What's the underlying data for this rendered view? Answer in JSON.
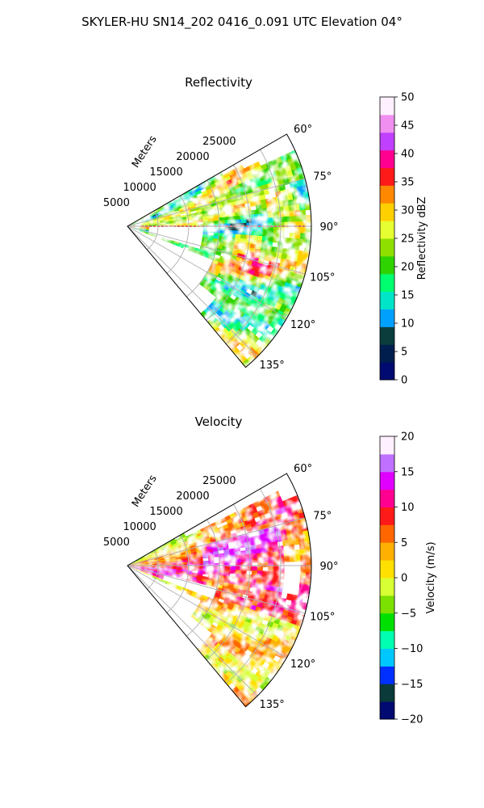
{
  "figure_title": "SKYLER-HU  SN14_202  0416_0.091 UTC Elevation 04°",
  "chart_data": [
    {
      "type": "heatmap",
      "title": "Reflectivity",
      "projection": "polar-sector",
      "radial_label": "Meters",
      "radial_ticks": [
        "5000",
        "10000",
        "15000",
        "20000",
        "25000"
      ],
      "radial_tick_values": [
        5000,
        10000,
        15000,
        20000,
        25000
      ],
      "rlim": [
        0,
        30000
      ],
      "theta_ticks": [
        "60°",
        "75°",
        "90°",
        "105°",
        "120°",
        "135°"
      ],
      "theta_tick_values": [
        60,
        75,
        90,
        105,
        120,
        135
      ],
      "theta_range_deg": [
        60,
        140
      ],
      "grid": true,
      "colorbar": {
        "label": "Reflectivity dBZ",
        "range": [
          0,
          50
        ],
        "ticks": [
          "0",
          "5",
          "10",
          "15",
          "20",
          "25",
          "30",
          "35",
          "40",
          "45",
          "50"
        ],
        "tick_values": [
          0,
          5,
          10,
          15,
          20,
          25,
          30,
          35,
          40,
          45,
          50
        ],
        "colors": [
          "#000a70",
          "#001e4d",
          "#0b3d3d",
          "#00a0ff",
          "#00e5c8",
          "#00ff6e",
          "#2fd400",
          "#8fe000",
          "#e6ff33",
          "#ffd000",
          "#ff8800",
          "#ff1a1a",
          "#ff0090",
          "#c040ff",
          "#f08ff0",
          "#fff0ff"
        ]
      },
      "dominant_values": "mostly 20–35 dBZ; cores up to about 40–45 dBZ"
    },
    {
      "type": "heatmap",
      "title": "Velocity",
      "projection": "polar-sector",
      "radial_label": "Meters",
      "radial_ticks": [
        "5000",
        "10000",
        "15000",
        "20000",
        "25000"
      ],
      "radial_tick_values": [
        5000,
        10000,
        15000,
        20000,
        25000
      ],
      "rlim": [
        0,
        30000
      ],
      "theta_ticks": [
        "60°",
        "75°",
        "90°",
        "105°",
        "120°",
        "135°"
      ],
      "theta_tick_values": [
        60,
        75,
        90,
        105,
        120,
        135
      ],
      "theta_range_deg": [
        60,
        140
      ],
      "grid": true,
      "colorbar": {
        "label": "Velocity (m/s)",
        "range": [
          -20,
          20
        ],
        "ticks": [
          "−20",
          "−15",
          "−10",
          "−5",
          "0",
          "5",
          "10",
          "15",
          "20"
        ],
        "tick_values": [
          -20,
          -15,
          -10,
          -5,
          0,
          5,
          10,
          15,
          20
        ],
        "colors": [
          "#000a70",
          "#0a3a3a",
          "#0030ff",
          "#00c8ff",
          "#00ffb0",
          "#00e000",
          "#7ce000",
          "#d8ff33",
          "#ffe000",
          "#ffb000",
          "#ff6600",
          "#ff1a1a",
          "#ff0090",
          "#e000ff",
          "#c070ff",
          "#fff0ff"
        ]
      },
      "dominant_values": "mostly 0–10 m/s; 10–15 m/s in the center; near −5 to 0 m/s on the north edge"
    }
  ]
}
